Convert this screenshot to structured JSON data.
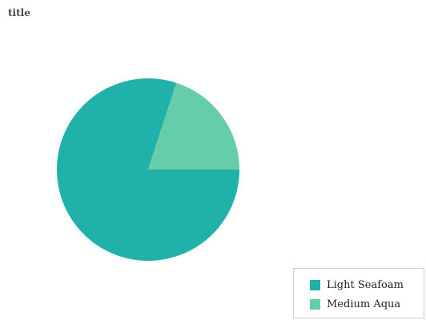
{
  "chart_data": {
    "type": "pie",
    "title": "title",
    "labels": [
      "Light Seafoam",
      "Medium Aqua"
    ],
    "values": [
      80,
      20
    ],
    "colors": [
      "#20B2AA",
      "#66CDAA"
    ],
    "legend_position": "bottom-right"
  },
  "legend": {
    "items": [
      {
        "label": "Light Seafoam",
        "color": "#20B2AA"
      },
      {
        "label": "Medium Aqua",
        "color": "#66CDAA"
      }
    ]
  }
}
